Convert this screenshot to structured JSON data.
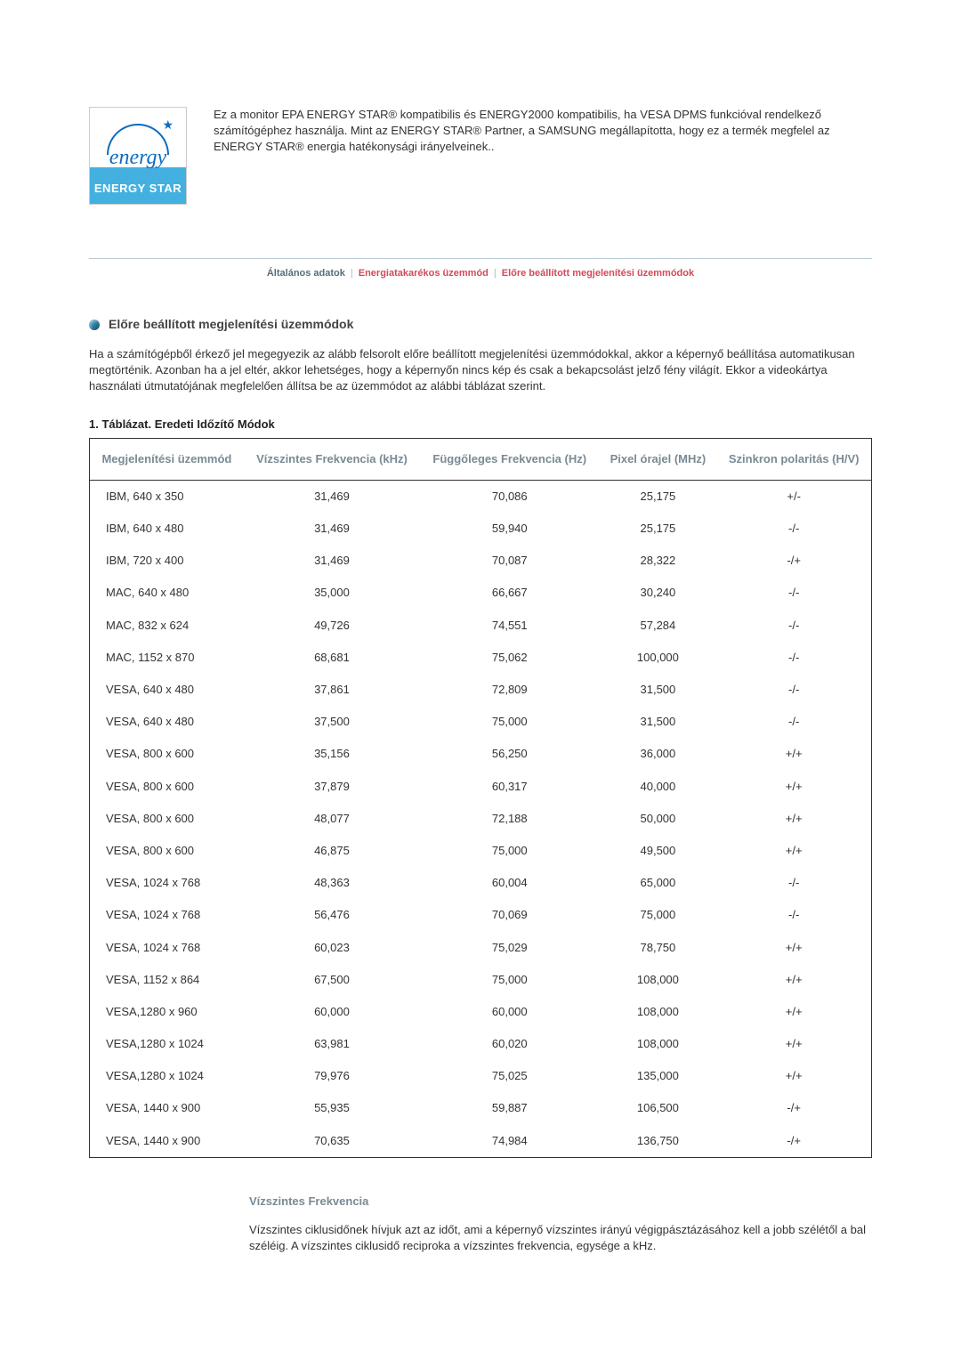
{
  "logo": {
    "script_text": "energy",
    "label_text": "ENERGY STAR"
  },
  "intro_text": "Ez a monitor EPA ENERGY STAR® kompatibilis és ENERGY2000 kompatibilis, ha VESA DPMS funkcióval rendelkező számítógéphez használja. Mint az ENERGY STAR® Partner, a SAMSUNG megállapította, hogy ez a termék megfelel az ENERGY STAR® energia hatékonysági irányelveinek..",
  "tabs": {
    "items": [
      {
        "label": "Általános adatok",
        "active": true,
        "color": "#546e7a"
      },
      {
        "label": "Energiatakarékos üzemmód",
        "active": false,
        "color": "#d24a5a"
      },
      {
        "label": "Előre beállított megjelenítési üzemmódok",
        "active": false,
        "color": "#d24a5a"
      }
    ]
  },
  "section": {
    "title": "Előre beállított megjelenítési üzemmódok",
    "body": "Ha a számítógépből érkező jel megegyezik az alább felsorolt előre beállított megjelenítési üzemmódokkal, akkor a képernyő beállítása automatikusan megtörténik. Azonban ha a jel eltér, akkor lehetséges, hogy a képernyőn nincs kép és csak a bekapcsolást jelző fény világít. Ekkor a videokártya használati útmutatójának megfelelően állítsa be az üzemmódot az alábbi táblázat szerint."
  },
  "table": {
    "title": "1. Táblázat. Eredeti Időzítő Módok",
    "columns": [
      "Megjelenítési üzemmód",
      "Vízszintes Frekvencia (kHz)",
      "Függőleges Frekvencia (Hz)",
      "Pixel órajel (MHz)",
      "Szinkron polaritás (H/V)"
    ],
    "rows": [
      [
        "IBM, 640 x 350",
        "31,469",
        "70,086",
        "25,175",
        "+/-"
      ],
      [
        "IBM, 640 x 480",
        "31,469",
        "59,940",
        "25,175",
        "-/-"
      ],
      [
        "IBM, 720 x 400",
        "31,469",
        "70,087",
        "28,322",
        "-/+"
      ],
      [
        "MAC, 640 x 480",
        "35,000",
        "66,667",
        "30,240",
        "-/-"
      ],
      [
        "MAC, 832 x 624",
        "49,726",
        "74,551",
        "57,284",
        "-/-"
      ],
      [
        "MAC, 1152 x 870",
        "68,681",
        "75,062",
        "100,000",
        "-/-"
      ],
      [
        "VESA, 640 x 480",
        "37,861",
        "72,809",
        "31,500",
        "-/-"
      ],
      [
        "VESA, 640 x 480",
        "37,500",
        "75,000",
        "31,500",
        "-/-"
      ],
      [
        "VESA, 800 x 600",
        "35,156",
        "56,250",
        "36,000",
        "+/+"
      ],
      [
        "VESA, 800 x 600",
        "37,879",
        "60,317",
        "40,000",
        "+/+"
      ],
      [
        "VESA, 800 x 600",
        "48,077",
        "72,188",
        "50,000",
        "+/+"
      ],
      [
        "VESA, 800 x 600",
        "46,875",
        "75,000",
        "49,500",
        "+/+"
      ],
      [
        "VESA, 1024 x 768",
        "48,363",
        "60,004",
        "65,000",
        "-/-"
      ],
      [
        "VESA, 1024 x 768",
        "56,476",
        "70,069",
        "75,000",
        "-/-"
      ],
      [
        "VESA, 1024 x 768",
        "60,023",
        "75,029",
        "78,750",
        "+/+"
      ],
      [
        "VESA, 1152 x 864",
        "67,500",
        "75,000",
        "108,000",
        "+/+"
      ],
      [
        "VESA,1280 x 960",
        "60,000",
        "60,000",
        "108,000",
        "+/+"
      ],
      [
        "VESA,1280 x 1024",
        "63,981",
        "60,020",
        "108,000",
        "+/+"
      ],
      [
        "VESA,1280 x 1024",
        "79,976",
        "75,025",
        "135,000",
        "+/+"
      ],
      [
        "VESA, 1440 x 900",
        "55,935",
        "59,887",
        "106,500",
        "-/+"
      ],
      [
        "VESA, 1440 x 900",
        "70,635",
        "74,984",
        "136,750",
        "-/+"
      ]
    ]
  },
  "definition": {
    "title": "Vízszintes Frekvencia",
    "body": "Vízszintes ciklusidőnek hívjuk azt az időt, ami a képernyő vízszintes irányú végigpásztázásához kell a jobb szélétől a bal széléig. A vízszintes ciklusidő reciproka a vízszintes frekvencia, egysége a kHz."
  }
}
